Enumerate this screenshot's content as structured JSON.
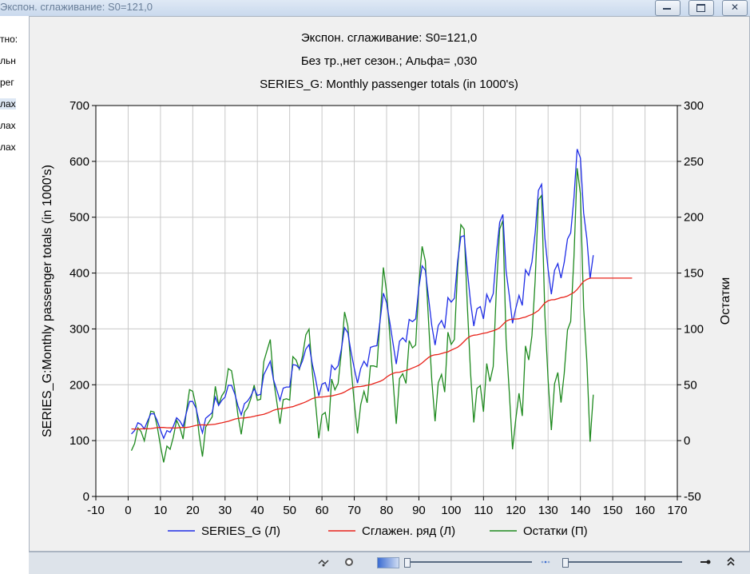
{
  "window": {
    "title": "Экспон. сглаживание: S0=121,0",
    "buttons": [
      "minimize",
      "maximize",
      "close"
    ]
  },
  "left_pane": {
    "items": [
      "тно:",
      "льн",
      "рег",
      "лах",
      "лах",
      "лах"
    ],
    "selected_index": 3
  },
  "colors": {
    "series": "#1f2de6",
    "smoothed": "#e8231a",
    "residuals": "#1f8a1f",
    "grid": "#c8c8c8",
    "plot_bg": "#ffffff",
    "frame_bg": "#f0f0f0"
  },
  "chart_data": {
    "type": "line",
    "title": [
      "Экспон. сглаживание:  S0=121,0",
      "Без тр.,нет сезон.; Альфа=  ,030",
      "SERIES_G: Monthly passenger totals (in 1000's)"
    ],
    "xlabel": "",
    "ylabel": "SERIES_G:Monthly passenger totals (in 1000's)",
    "y2label": "Остатки",
    "xlim": [
      -10,
      170
    ],
    "ylim": [
      0,
      700
    ],
    "y2lim": [
      -50,
      300
    ],
    "xticks": [
      -10,
      0,
      10,
      20,
      30,
      40,
      50,
      60,
      70,
      80,
      90,
      100,
      110,
      120,
      130,
      140,
      150,
      160,
      170
    ],
    "yticks": [
      0,
      100,
      200,
      300,
      400,
      500,
      600,
      700
    ],
    "y2ticks": [
      -50,
      0,
      50,
      100,
      150,
      200,
      250,
      300
    ],
    "grid": true,
    "legend_position": "bottom",
    "series": [
      {
        "name": "SERIES_G (Л)",
        "axis": "left",
        "x_start": 1,
        "values": [
          112,
          118,
          132,
          129,
          121,
          135,
          148,
          148,
          136,
          119,
          104,
          118,
          115,
          126,
          141,
          135,
          125,
          149,
          170,
          170,
          158,
          133,
          114,
          140,
          145,
          150,
          178,
          163,
          172,
          178,
          199,
          199,
          184,
          162,
          146,
          166,
          171,
          180,
          193,
          181,
          183,
          218,
          230,
          242,
          209,
          191,
          172,
          194,
          196,
          196,
          236,
          235,
          229,
          243,
          264,
          272,
          237,
          211,
          180,
          201,
          204,
          188,
          235,
          227,
          234,
          264,
          302,
          293,
          259,
          229,
          203,
          229,
          242,
          233,
          267,
          269,
          270,
          315,
          364,
          347,
          312,
          274,
          237,
          278,
          284,
          277,
          317,
          313,
          318,
          374,
          413,
          405,
          355,
          306,
          271,
          306,
          315,
          301,
          356,
          348,
          355,
          422,
          465,
          467,
          404,
          347,
          305,
          336,
          340,
          318,
          362,
          348,
          363,
          435,
          491,
          505,
          404,
          359,
          310,
          337,
          360,
          342,
          406,
          396,
          420,
          472,
          548,
          559,
          463,
          407,
          362,
          405,
          417,
          391,
          419,
          461,
          472,
          535,
          622,
          606,
          508,
          461,
          390,
          432
        ]
      },
      {
        "name": "Сглажен.  ряд (Л)",
        "axis": "left",
        "x_start": 1,
        "values": [
          121.0,
          120.7,
          120.6,
          120.9,
          121.2,
          121.2,
          121.6,
          122.4,
          123.2,
          123.6,
          123.5,
          122.9,
          122.8,
          122.6,
          122.7,
          123.2,
          123.6,
          123.6,
          124.4,
          125.8,
          127.2,
          128.1,
          128.3,
          127.9,
          128.3,
          128.8,
          129.4,
          130.9,
          131.9,
          133.3,
          134.6,
          136.5,
          138.4,
          139.7,
          140.4,
          140.6,
          141.4,
          142.3,
          143.4,
          144.9,
          146.0,
          147.2,
          149.1,
          151.5,
          154.3,
          156.0,
          157.0,
          157.4,
          158.5,
          159.7,
          160.8,
          163.0,
          165.1,
          167.0,
          169.3,
          172.2,
          175.2,
          177.0,
          178.0,
          178.1,
          178.8,
          179.6,
          179.9,
          181.5,
          182.9,
          184.5,
          186.9,
          190.4,
          193.5,
          195.5,
          196.6,
          196.8,
          197.8,
          199.1,
          200.1,
          202.1,
          204.1,
          206.1,
          209.0,
          213.9,
          217.5,
          220.5,
          222.0,
          222.4,
          224.1,
          225.9,
          227.4,
          230.0,
          232.4,
          234.9,
          239.1,
          244.1,
          248.9,
          252.1,
          253.7,
          254.2,
          255.8,
          257.6,
          258.9,
          261.9,
          264.5,
          267.2,
          271.9,
          277.7,
          283.4,
          287.0,
          288.8,
          289.3,
          290.7,
          292.2,
          293.0,
          295.1,
          296.7,
          298.7,
          302.2,
          307.9,
          313.8,
          316.4,
          317.8,
          317.6,
          318.2,
          319.9,
          321.2,
          323.8,
          326.0,
          328.9,
          333.0,
          339.5,
          346.5,
          350.5,
          352.2,
          352.5,
          354.1,
          356.0,
          357.0,
          358.9,
          362.0,
          365.3,
          370.6,
          378.2,
          385.0,
          388.7,
          391.0,
          390.9,
          390.9,
          390.9,
          390.9,
          390.9,
          390.9,
          390.9,
          390.9,
          390.9,
          390.9,
          390.9,
          390.9,
          390.9
        ]
      },
      {
        "name": "Остатки (П)",
        "axis": "right",
        "x_start": 1,
        "values": [
          -9.0,
          -2.7,
          11.4,
          8.1,
          -0.2,
          13.8,
          26.4,
          25.6,
          12.8,
          -4.6,
          -19.5,
          -4.9,
          -7.8,
          3.4,
          18.3,
          11.8,
          1.4,
          25.4,
          45.6,
          44.2,
          30.8,
          4.9,
          -14.3,
          12.1,
          16.7,
          21.2,
          48.6,
          32.1,
          40.1,
          44.7,
          64.4,
          62.5,
          45.6,
          22.3,
          5.6,
          25.4,
          29.6,
          37.7,
          49.6,
          36.1,
          37.0,
          70.8,
          80.9,
          90.5,
          54.7,
          35.0,
          15.0,
          36.6,
          37.5,
          36.3,
          75.2,
          72.0,
          63.9,
          76.0,
          94.7,
          99.8,
          61.8,
          34.0,
          2.0,
          22.9,
          25.2,
          8.4,
          55.1,
          45.5,
          51.1,
          79.5,
          115.1,
          102.6,
          65.5,
          33.5,
          6.4,
          32.2,
          44.2,
          33.9,
          66.9,
          66.9,
          65.9,
          108.9,
          155.0,
          133.1,
          94.5,
          53.5,
          15.0,
          55.6,
          59.9,
          51.1,
          89.6,
          83.0,
          85.6,
          139.1,
          173.9,
          160.9,
          106.1,
          53.9,
          17.3,
          51.8,
          59.2,
          43.4,
          97.1,
          86.1,
          90.5,
          154.8,
          193.3,
          189.3,
          120.6,
          60.0,
          16.2,
          46.7,
          49.3,
          25.8,
          69.0,
          52.9,
          66.3,
          136.3,
          189.3,
          197.1,
          90.2,
          42.6,
          -7.8,
          19.4,
          42.4,
          22.1,
          84.8,
          72.2,
          94.1,
          143.1,
          215.5,
          219.5,
          112.5,
          54.8,
          9.5,
          50.9,
          61.0,
          34.0,
          60.1,
          99.0,
          106.7,
          164.4,
          243.8,
          221.0,
          119.3,
          70.1,
          -1.0,
          41.1
        ]
      }
    ]
  }
}
